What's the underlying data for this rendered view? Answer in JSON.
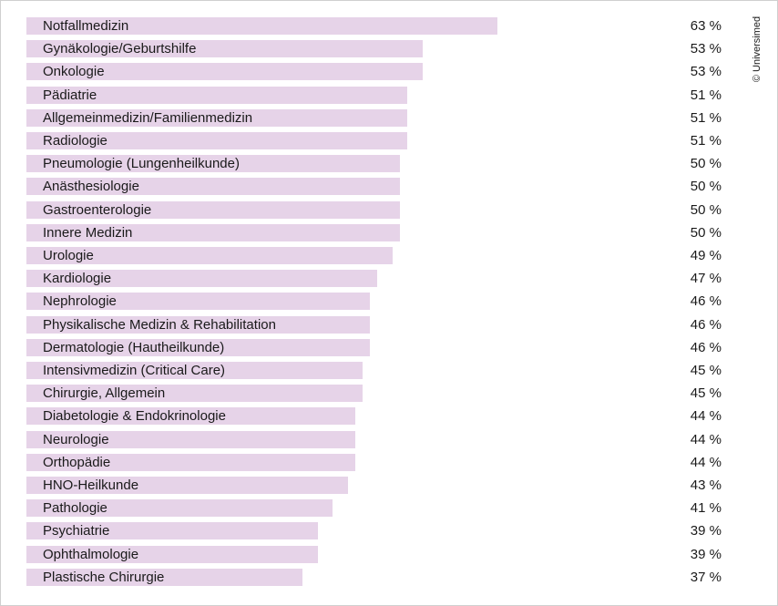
{
  "copyright": "© Universimed",
  "chart_data": {
    "type": "bar",
    "orientation": "horizontal",
    "value_unit": "%",
    "categories": [
      "Notfallmedizin",
      "Gynäkologie/Geburtshilfe",
      "Onkologie",
      "Pädiatrie",
      "Allgemeinmedizin/Familienmedizin",
      "Radiologie",
      "Pneumologie (Lungenheilkunde)",
      "Anästhesiologie",
      "Gastroenterologie",
      "Innere Medizin",
      "Urologie",
      "Kardiologie",
      "Nephrologie",
      "Physikalische Medizin & Rehabilitation",
      "Dermatologie (Hautheilkunde)",
      "Intensivmedizin (Critical Care)",
      "Chirurgie, Allgemein",
      "Diabetologie & Endokrinologie",
      "Neurologie",
      "Orthopädie",
      "HNO-Heilkunde",
      "Pathologie",
      "Psychiatrie",
      "Ophthalmologie",
      "Plastische Chirurgie"
    ],
    "values": [
      63,
      53,
      53,
      51,
      51,
      51,
      50,
      50,
      50,
      50,
      49,
      47,
      46,
      46,
      46,
      45,
      45,
      44,
      44,
      44,
      43,
      41,
      39,
      39,
      37
    ],
    "value_labels": [
      "63 %",
      "53 %",
      "53 %",
      "51 %",
      "51 %",
      "51 %",
      "50 %",
      "50 %",
      "50 %",
      "50 %",
      "49 %",
      "47 %",
      "46 %",
      "46 %",
      "46 %",
      "45 %",
      "45 %",
      "44 %",
      "44 %",
      "44 %",
      "43 %",
      "41 %",
      "39 %",
      "39 %",
      "37 %"
    ],
    "xlim": [
      0,
      100
    ],
    "grid": false,
    "bar_color": "#e6d3e8"
  }
}
